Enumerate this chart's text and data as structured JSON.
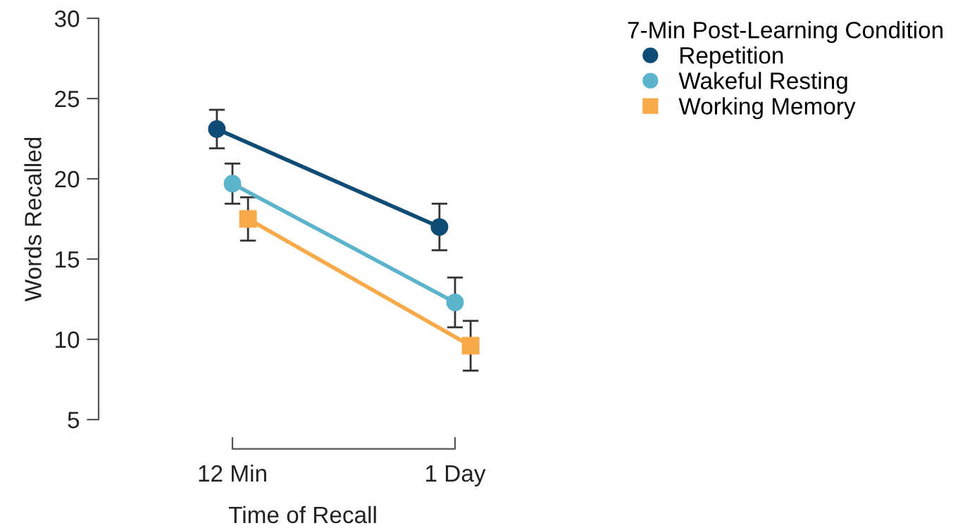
{
  "chart_data": {
    "type": "line",
    "xlabel": "Time of Recall",
    "ylabel": "Words Recalled",
    "legend_title": "7-Min Post-Learning Condition",
    "categories": [
      "12 Min",
      "1 Day"
    ],
    "series": [
      {
        "name": "Repetition",
        "color": "#0e4c75",
        "marker": "circle",
        "values": [
          23.1,
          17.0
        ],
        "errors": [
          1.2,
          1.45
        ]
      },
      {
        "name": "Wakeful Resting",
        "color": "#5cb3cc",
        "marker": "circle",
        "values": [
          19.7,
          12.3
        ],
        "errors": [
          1.25,
          1.55
        ]
      },
      {
        "name": "Working Memory",
        "color": "#f8aa4b",
        "marker": "square",
        "values": [
          17.5,
          9.6
        ],
        "errors": [
          1.35,
          1.55
        ]
      }
    ],
    "ylim": [
      5,
      30
    ],
    "yticks": [
      5,
      10,
      15,
      20,
      25,
      30
    ],
    "grid": false,
    "legend": "top right"
  }
}
